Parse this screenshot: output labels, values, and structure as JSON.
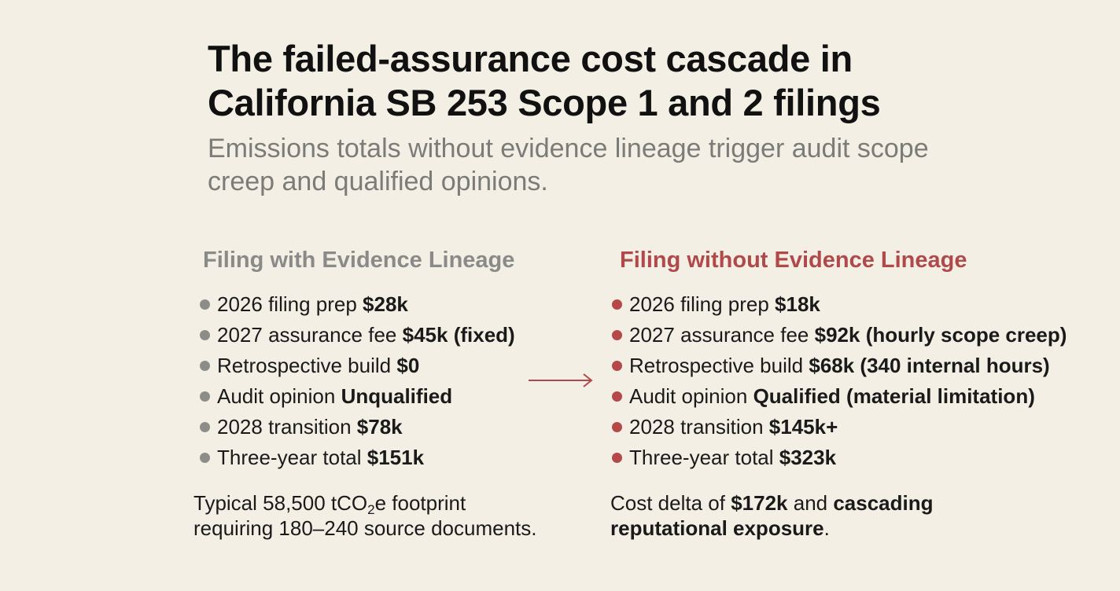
{
  "header": {
    "title_line1": "The failed-assurance cost cascade in",
    "title_line2": "California SB 253 Scope 1 and 2 filings",
    "subtitle_line1": "Emissions totals without evidence lineage trigger audit scope",
    "subtitle_line2": "creep and qualified opinions."
  },
  "colors": {
    "background": "#f3efe5",
    "with_lineage_accent": "#8a8a88",
    "without_lineage_accent": "#b04a4a"
  },
  "with_lineage": {
    "heading": "Filing with Evidence Lineage",
    "items": [
      {
        "label": "2026 filing prep",
        "value": "$28k"
      },
      {
        "label": "2027 assurance fee",
        "value": "$45k (fixed)"
      },
      {
        "label": "Retrospective build",
        "value": "$0"
      },
      {
        "label": "Audit opinion",
        "value": "Unqualified"
      },
      {
        "label": "2028 transition",
        "value": "$78k"
      },
      {
        "label": "Three-year total",
        "value": "$151k"
      }
    ],
    "note_part1": "Typical 58,500 tCO",
    "note_sub": "2",
    "note_part2": "e footprint",
    "note_line2": "requiring 180–240 source documents."
  },
  "without_lineage": {
    "heading": "Filing without Evidence Lineage",
    "items": [
      {
        "label": "2026 filing prep",
        "value": "$18k"
      },
      {
        "label": "2027 assurance fee",
        "value": "$92k (hourly scope creep)"
      },
      {
        "label": "Retrospective build",
        "value": "$68k (340 internal hours)"
      },
      {
        "label": "Audit opinion",
        "value": "Qualified (material limitation)"
      },
      {
        "label": "2028 transition",
        "value": "$145k+"
      },
      {
        "label": "Three-year total",
        "value": "$323k"
      }
    ],
    "note_part1": "Cost delta of ",
    "note_bold1": "$172k",
    "note_part2": " and ",
    "note_bold2": "cascading",
    "note_bold3": "reputational exposure",
    "note_part3": "."
  },
  "arrow_icon": "right-arrow-icon"
}
